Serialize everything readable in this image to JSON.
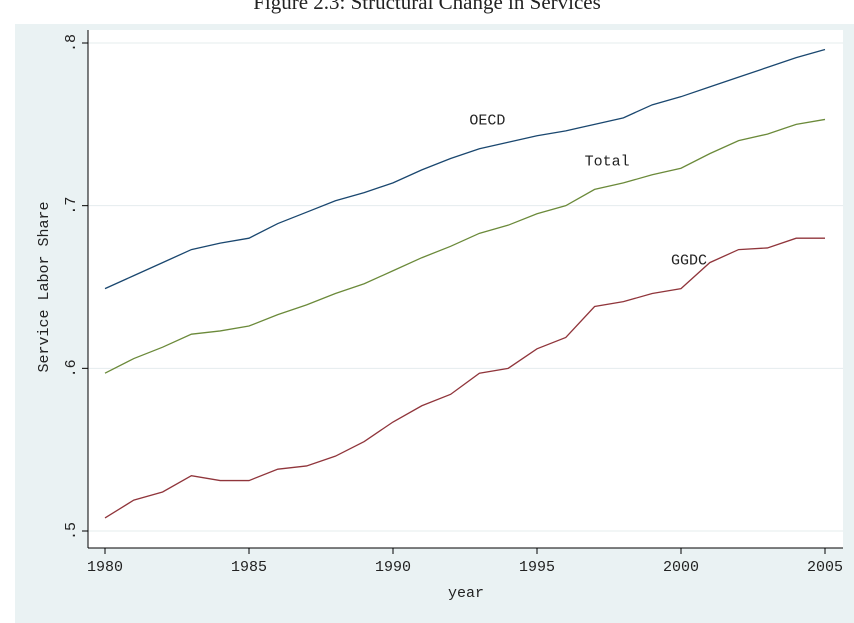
{
  "chart_data": {
    "type": "line",
    "title": "Figure 2.3: Structural Change in Services",
    "x_label": "year",
    "y_label": "Service Labor Share",
    "x": [
      1980,
      1981,
      1982,
      1983,
      1984,
      1985,
      1986,
      1987,
      1988,
      1989,
      1990,
      1991,
      1992,
      1993,
      1994,
      1995,
      1996,
      1997,
      1998,
      1999,
      2000,
      2001,
      2002,
      2003,
      2004,
      2005
    ],
    "series": [
      {
        "name": "OECD",
        "color": "#1a476f",
        "values": [
          0.649,
          0.657,
          0.665,
          0.673,
          0.677,
          0.68,
          0.689,
          0.696,
          0.703,
          0.708,
          0.714,
          0.722,
          0.729,
          0.735,
          0.739,
          0.743,
          0.746,
          0.75,
          0.754,
          0.762,
          0.767,
          0.773,
          0.779,
          0.785,
          0.791,
          0.796
        ]
      },
      {
        "name": "Total",
        "color": "#6b8a3a",
        "values": [
          0.597,
          0.606,
          0.613,
          0.621,
          0.623,
          0.626,
          0.633,
          0.639,
          0.646,
          0.652,
          0.66,
          0.668,
          0.675,
          0.683,
          0.688,
          0.695,
          0.7,
          0.71,
          0.714,
          0.719,
          0.723,
          0.732,
          0.74,
          0.744,
          0.75,
          0.753
        ]
      },
      {
        "name": "GGDC",
        "color": "#90353b",
        "values": [
          0.508,
          0.519,
          0.524,
          0.534,
          0.531,
          0.531,
          0.538,
          0.54,
          0.546,
          0.555,
          0.567,
          0.577,
          0.584,
          0.597,
          0.6,
          0.612,
          0.619,
          0.638,
          0.641,
          0.646,
          0.649,
          0.665,
          0.673,
          0.674,
          0.68,
          0.68
        ]
      }
    ],
    "xlim": [
      1980,
      2005
    ],
    "xticks": [
      1980,
      1985,
      1990,
      1995,
      2000,
      2005
    ],
    "ylim": [
      0.5,
      0.8
    ],
    "yticks": [
      {
        "value": 0.5,
        "label": ".5"
      },
      {
        "value": 0.6,
        "label": ".6"
      },
      {
        "value": 0.7,
        "label": ".7"
      },
      {
        "value": 0.8,
        "label": ".8"
      }
    ],
    "grid": true
  }
}
